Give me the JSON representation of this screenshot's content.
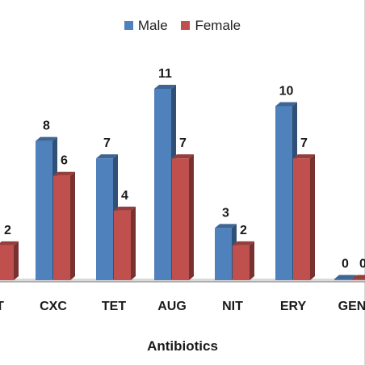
{
  "chart_data": {
    "type": "bar",
    "title": "",
    "xlabel": "Antibiotics",
    "ylabel": "",
    "categories": [
      "",
      "CXC",
      "TET",
      "AUG",
      "NIT",
      "ERY",
      "GEN"
    ],
    "partial_first_category_label": "T",
    "series": [
      {
        "name": "Male",
        "color": "#4f81bd",
        "values": [
          null,
          8,
          7,
          11,
          3,
          10,
          0
        ]
      },
      {
        "name": "Female",
        "color": "#c0504d",
        "values": [
          2,
          6,
          4,
          7,
          2,
          7,
          0
        ]
      }
    ],
    "data_labels": true,
    "legend": "top-center",
    "grid": false,
    "ylim": [
      0,
      12
    ]
  }
}
